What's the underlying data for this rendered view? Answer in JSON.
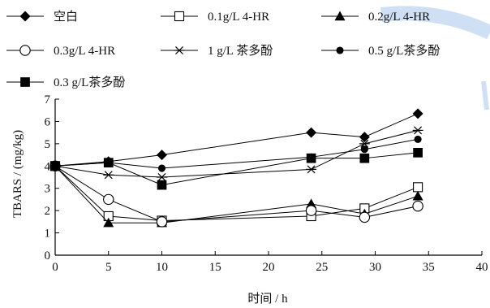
{
  "chart_data": {
    "type": "line",
    "xlabel": "时间 / h",
    "ylabel": "TBARS / (mg/kg)",
    "xlim": [
      0,
      40
    ],
    "ylim": [
      0,
      7
    ],
    "xticks": [
      0,
      5,
      10,
      15,
      20,
      25,
      30,
      35,
      40
    ],
    "yticks": [
      0,
      1,
      2,
      3,
      4,
      5,
      6,
      7
    ],
    "grid": false,
    "legend_position": "top",
    "x": [
      0,
      5,
      10,
      24,
      29,
      34
    ],
    "series": [
      {
        "name": "空白",
        "marker": "diamond-filled",
        "values": [
          4.0,
          4.2,
          4.5,
          5.5,
          5.3,
          6.35
        ]
      },
      {
        "name": "0.1g/L 4-HR",
        "marker": "square-open",
        "values": [
          4.0,
          1.75,
          1.55,
          1.75,
          2.1,
          3.05
        ]
      },
      {
        "name": "0.2g/L 4-HR",
        "marker": "triangle-filled",
        "values": [
          4.0,
          1.45,
          1.45,
          2.3,
          1.85,
          2.65
        ]
      },
      {
        "name": "0.3g/L 4-HR",
        "marker": "circle-open",
        "values": [
          4.0,
          2.5,
          1.5,
          2.0,
          1.7,
          2.2
        ]
      },
      {
        "name": "1 g/L 茶多酚",
        "marker": "asterisk",
        "values": [
          4.0,
          3.6,
          3.5,
          3.85,
          5.0,
          5.6
        ]
      },
      {
        "name": "0.5 g/L茶多酚",
        "marker": "circle-filled",
        "values": [
          4.0,
          4.15,
          3.9,
          4.4,
          4.75,
          5.2
        ]
      },
      {
        "name": "0.3 g/L茶多酚",
        "marker": "square-filled",
        "values": [
          4.0,
          4.15,
          3.15,
          4.35,
          4.35,
          4.6
        ]
      }
    ]
  }
}
